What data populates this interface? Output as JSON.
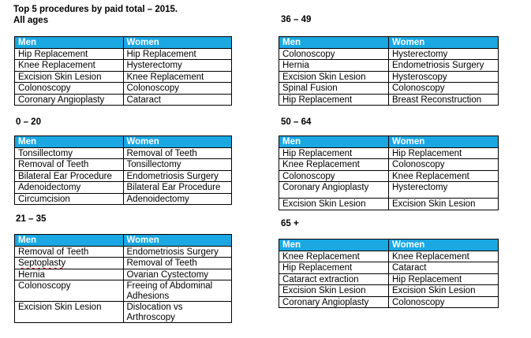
{
  "page": {
    "title": "Top 5 procedures by paid total – 2015."
  },
  "column_headers": {
    "men": "Men",
    "women": "Women"
  },
  "colors": {
    "header_bg": "#1AA7E2",
    "header_text": "#FFFFFF",
    "table_border": "#000000",
    "spellcheck_underline": "#CC0000"
  },
  "tables": [
    {
      "key": "all-ages",
      "label": "All ages",
      "rows": [
        {
          "men": "Hip Replacement",
          "women": "Hip Replacement"
        },
        {
          "men": "Knee Replacement",
          "women": "Hysterectomy"
        },
        {
          "men": "Excision Skin Lesion",
          "women": "Knee Replacement"
        },
        {
          "men": "Colonoscopy",
          "women": "Colonoscopy"
        },
        {
          "men": "Coronary Angioplasty",
          "women": "Cataract"
        }
      ]
    },
    {
      "key": "0-20",
      "label": "0 – 20",
      "rows": [
        {
          "men": "Tonsillectomy",
          "women": "Removal of Teeth"
        },
        {
          "men": "Removal of Teeth",
          "women": "Tonsillectomy"
        },
        {
          "men": "Bilateral Ear Procedure",
          "women": "Endometriosis Surgery"
        },
        {
          "men": "Adenoidectomy",
          "women": "Bilateral Ear Procedure"
        },
        {
          "men": "Circumcision",
          "women": "Adenoidectomy"
        }
      ]
    },
    {
      "key": "21-35",
      "label": "21 – 35",
      "rows": [
        {
          "men": "Removal of Teeth",
          "women": "Endometriosis Surgery"
        },
        {
          "men": "Septoplasty",
          "men_spellcheck": true,
          "women": "Removal of Teeth"
        },
        {
          "men": "Hernia",
          "women": "Ovarian Cystectomy"
        },
        {
          "men": "Colonoscopy",
          "women": "Freeing of Abdominal Adhesions"
        },
        {
          "men": "Excision Skin Lesion",
          "women": "Dislocation vs Arthroscopy"
        }
      ]
    },
    {
      "key": "36-49",
      "label": "36 – 49",
      "rows": [
        {
          "men": "Colonoscopy",
          "women": "Hysterectomy"
        },
        {
          "men": "Hernia",
          "women": "Endometriosis Surgery"
        },
        {
          "men": "Excision Skin Lesion",
          "women": "Hysteroscopy"
        },
        {
          "men": "Spinal Fusion",
          "women": "Colonoscopy"
        },
        {
          "men": "Hip Replacement",
          "women": "Breast Reconstruction"
        }
      ]
    },
    {
      "key": "50-64",
      "label": "50 – 64",
      "rows": [
        {
          "men": "Hip Replacement",
          "women": "Hip Replacement"
        },
        {
          "men": "Knee Replacement",
          "women": "Colonoscopy"
        },
        {
          "men": "Colonoscopy",
          "women": "Knee Replacement"
        },
        {
          "men": "Coronary Angioplasty",
          "women": "Hysterectomy",
          "tall": true
        },
        {
          "men": "Excision Skin Lesion",
          "women": "Excision Skin Lesion"
        }
      ]
    },
    {
      "key": "65-plus",
      "label": "65 +",
      "rows": [
        {
          "men": "Knee Replacement",
          "women": "Knee Replacement"
        },
        {
          "men": "Hip Replacement",
          "women": "Cataract"
        },
        {
          "men": "Cataract extraction",
          "women": "Hip Replacement"
        },
        {
          "men": "Excision Skin Lesion",
          "women": "Excision Skin Lesion"
        },
        {
          "men": "Coronary Angioplasty",
          "women": "Colonoscopy"
        }
      ]
    }
  ]
}
